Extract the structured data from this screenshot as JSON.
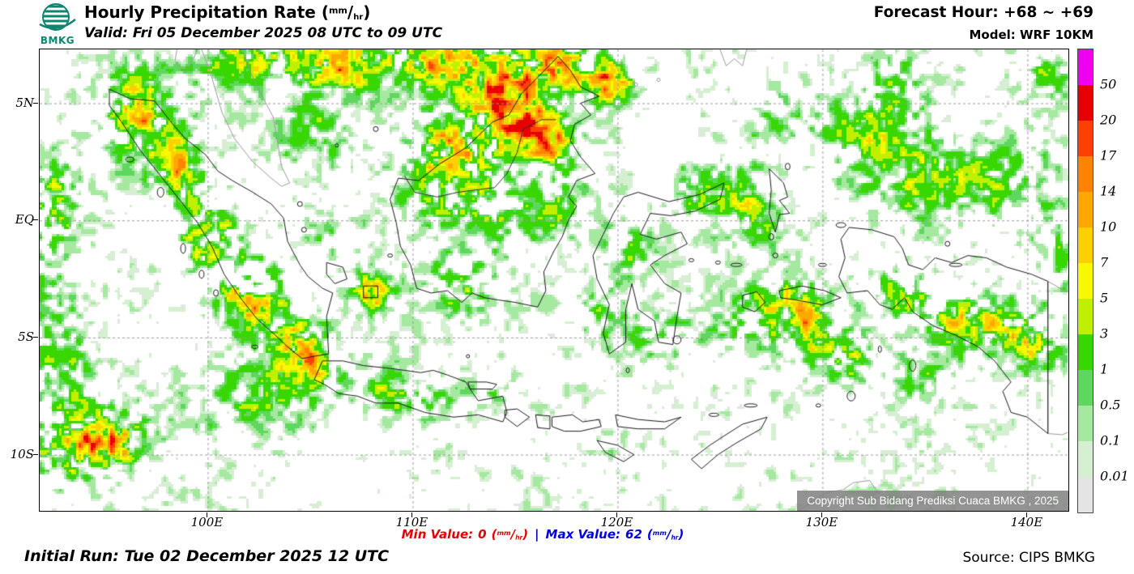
{
  "header": {
    "logo_text": "BMKG",
    "title": "Hourly Precipitation Rate",
    "valid": "Valid: Fri 05 December 2025 08 UTC to 09 UTC",
    "forecast_hour": "Forecast Hour: +68 ~ +69",
    "model": "Model: WRF 10KM"
  },
  "units": {
    "open": "(",
    "sup": "mm",
    "slash": "/",
    "sub": "hr",
    "close": ")"
  },
  "map": {
    "copyright": "Copyright Sub Bidang Prediksi Cuaca BMKG , 2025",
    "x_axis": [
      {
        "label": "100E",
        "lon": 100
      },
      {
        "label": "110E",
        "lon": 110
      },
      {
        "label": "120E",
        "lon": 120
      },
      {
        "label": "130E",
        "lon": 130
      },
      {
        "label": "140E",
        "lon": 140
      }
    ],
    "y_axis": [
      {
        "label": "5N",
        "lat": 5
      },
      {
        "label": "EQ",
        "lat": 0
      },
      {
        "label": "5S",
        "lat": -5
      },
      {
        "label": "10S",
        "lat": -10
      }
    ],
    "geo": {
      "lon_min": 91.8,
      "lon_max": 142.0,
      "lat_max": 7.3,
      "lat_min": -12.4
    },
    "precip_clusters": [
      [
        96.5,
        4.6,
        2.0,
        2.0,
        0.8
      ],
      [
        98.6,
        2.2,
        1.5,
        1.6,
        0.7
      ],
      [
        100.0,
        -0.6,
        1.6,
        1.8,
        0.8
      ],
      [
        102.2,
        -3.2,
        2.0,
        1.7,
        0.85
      ],
      [
        104.5,
        -5.2,
        1.4,
        1.2,
        0.7
      ],
      [
        102.5,
        -7.6,
        3.2,
        1.8,
        0.5
      ],
      [
        105.5,
        -6.1,
        1.5,
        1.2,
        0.45
      ],
      [
        92.3,
        0.0,
        1.6,
        3.2,
        0.75
      ],
      [
        92.6,
        -6.2,
        2.0,
        2.0,
        0.55
      ],
      [
        93.2,
        -9.8,
        2.6,
        1.6,
        0.8
      ],
      [
        95.8,
        -9.2,
        2.0,
        1.4,
        0.6
      ],
      [
        107.9,
        -3.1,
        1.0,
        0.9,
        0.95
      ],
      [
        106.4,
        -0.6,
        1.5,
        1.4,
        0.4
      ],
      [
        108.4,
        -7.2,
        1.7,
        1.0,
        0.55
      ],
      [
        111.0,
        -7.9,
        1.7,
        0.9,
        0.5
      ],
      [
        113.9,
        -7.1,
        1.2,
        0.8,
        0.4
      ],
      [
        101.8,
        6.9,
        2.4,
        1.3,
        0.75
      ],
      [
        106.3,
        6.8,
        2.2,
        1.3,
        0.9
      ],
      [
        110.6,
        6.9,
        2.4,
        1.2,
        0.85
      ],
      [
        114.1,
        6.4,
        2.2,
        1.4,
        0.9
      ],
      [
        117.4,
        6.6,
        1.8,
        1.2,
        0.85
      ],
      [
        119.7,
        5.9,
        1.3,
        1.0,
        0.85
      ],
      [
        112.0,
        3.1,
        2.6,
        1.7,
        0.78
      ],
      [
        115.1,
        4.4,
        2.0,
        1.4,
        0.8
      ],
      [
        116.9,
        3.3,
        1.3,
        1.2,
        0.75
      ],
      [
        113.8,
        0.4,
        2.3,
        1.7,
        0.55
      ],
      [
        112.3,
        -2.7,
        2.1,
        1.5,
        0.65
      ],
      [
        110.3,
        0.9,
        1.5,
        1.3,
        0.5
      ],
      [
        117.1,
        0.6,
        1.2,
        1.4,
        0.5
      ],
      [
        105.1,
        3.6,
        2.0,
        1.7,
        0.45
      ],
      [
        120.4,
        -1.3,
        1.5,
        1.4,
        0.55
      ],
      [
        123.9,
        1.4,
        2.0,
        1.4,
        0.6
      ],
      [
        121.9,
        -4.9,
        1.6,
        1.3,
        0.5
      ],
      [
        119.1,
        -4.1,
        1.2,
        1.5,
        0.45
      ],
      [
        126.7,
        0.4,
        1.5,
        1.9,
        0.5
      ],
      [
        128.4,
        -3.9,
        2.2,
        1.7,
        0.78
      ],
      [
        130.9,
        -5.9,
        1.8,
        1.4,
        0.65
      ],
      [
        125.6,
        -4.6,
        1.5,
        1.2,
        0.45
      ],
      [
        134.4,
        1.9,
        2.7,
        2.1,
        0.55
      ],
      [
        138.9,
        1.6,
        2.5,
        1.9,
        0.55
      ],
      [
        133.6,
        5.6,
        1.8,
        1.7,
        0.55
      ],
      [
        140.8,
        6.1,
        1.5,
        1.5,
        0.5
      ],
      [
        137.4,
        -4.3,
        2.7,
        1.4,
        0.85
      ],
      [
        133.9,
        -2.9,
        1.6,
        1.2,
        0.6
      ],
      [
        140.4,
        -5.3,
        1.6,
        1.5,
        0.6
      ],
      [
        134.9,
        -6.9,
        1.5,
        1.2,
        0.42
      ],
      [
        141.6,
        -1.3,
        1.5,
        2.0,
        0.5
      ],
      [
        131.1,
        3.6,
        2.0,
        1.9,
        0.45
      ],
      [
        127.6,
        4.6,
        1.6,
        1.6,
        0.4
      ],
      [
        119.8,
        -9.6,
        1.0,
        0.8,
        0.35
      ]
    ]
  },
  "legend": {
    "labels": [
      "50",
      "20",
      "17",
      "14",
      "10",
      "7",
      "5",
      "3",
      "1",
      "0.5",
      "0.1",
      "0.01"
    ],
    "colors": [
      "#F000F0",
      "#E60000",
      "#FF4000",
      "#FF8200",
      "#FFA800",
      "#FFD000",
      "#F8F800",
      "#C0F000",
      "#38D700",
      "#5FD75F",
      "#A5E8A0",
      "#D4F0D0",
      "#E4E4E4"
    ],
    "thresholds": [
      0.01,
      0.1,
      0.5,
      1,
      3,
      5,
      7,
      10,
      14,
      17,
      20,
      50
    ]
  },
  "footer": {
    "min_label": "Min Value:",
    "min_value": "0",
    "separator": "|",
    "max_label": "Max Value:",
    "max_value": "62",
    "initial_run": "Initial Run: Tue 02 December 2025 12 UTC",
    "source": "Source: CIPS BMKG"
  }
}
